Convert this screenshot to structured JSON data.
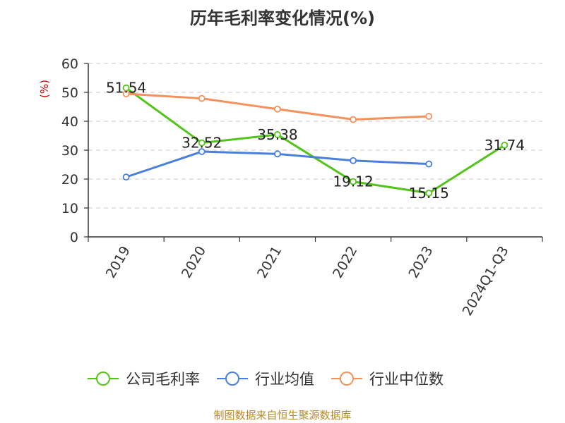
{
  "chart_data": {
    "type": "line",
    "title": "历年毛利率变化情况(%)",
    "ylabel": "(%)",
    "xlabel": "",
    "categories": [
      "2019",
      "2020",
      "2021",
      "2022",
      "2023",
      "2024Q1-Q3"
    ],
    "ylim": [
      0,
      60
    ],
    "yticks": [
      0,
      10,
      20,
      30,
      40,
      50,
      60
    ],
    "grid": true,
    "legend_position": "bottom",
    "series": [
      {
        "name": "公司毛利率",
        "color": "#52c41a",
        "values": [
          51.54,
          32.52,
          35.38,
          19.12,
          15.15,
          31.74
        ],
        "labels": [
          "51.54",
          "32.52",
          "35.38",
          "19.12",
          "15.15",
          "31.74"
        ]
      },
      {
        "name": "行业均值",
        "color": "#4a7fdc",
        "values": [
          20.7,
          29.5,
          28.7,
          26.4,
          25.2,
          null
        ]
      },
      {
        "name": "行业中位数",
        "color": "#f4915c",
        "values": [
          49.5,
          47.9,
          44.2,
          40.6,
          41.7,
          null
        ]
      }
    ],
    "source": "制图数据来自恒生聚源数据库"
  }
}
